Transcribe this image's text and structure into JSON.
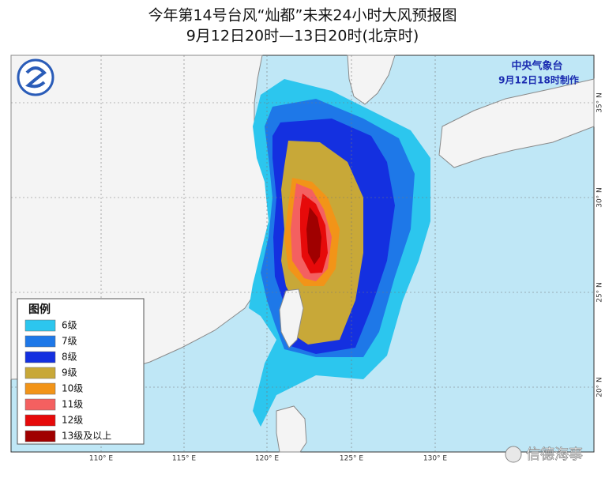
{
  "title": "今年第14号台风“灿都”未来24小时大风预报图",
  "subtitle": "9月12日20时—13日20时(北京时)",
  "agency": "中央气象台",
  "issued": "9月12日18时制作",
  "legend": {
    "title": "图例",
    "items": [
      {
        "label": "6级",
        "color": "#2cc6ee"
      },
      {
        "label": "7级",
        "color": "#1e78e8"
      },
      {
        "label": "8级",
        "color": "#1430e0"
      },
      {
        "label": "9级",
        "color": "#c8a838"
      },
      {
        "label": "10级",
        "color": "#f29418"
      },
      {
        "label": "11级",
        "color": "#f46060"
      },
      {
        "label": "12级",
        "color": "#e60a0a"
      },
      {
        "label": "13级及以上",
        "color": "#a00000"
      }
    ]
  },
  "longitudes": [
    "110° E",
    "115° E",
    "120° E",
    "125° E",
    "130° E"
  ],
  "latitudes": [
    "35° N",
    "30° N",
    "25° N",
    "20° N"
  ],
  "watermark": "信德海事"
}
